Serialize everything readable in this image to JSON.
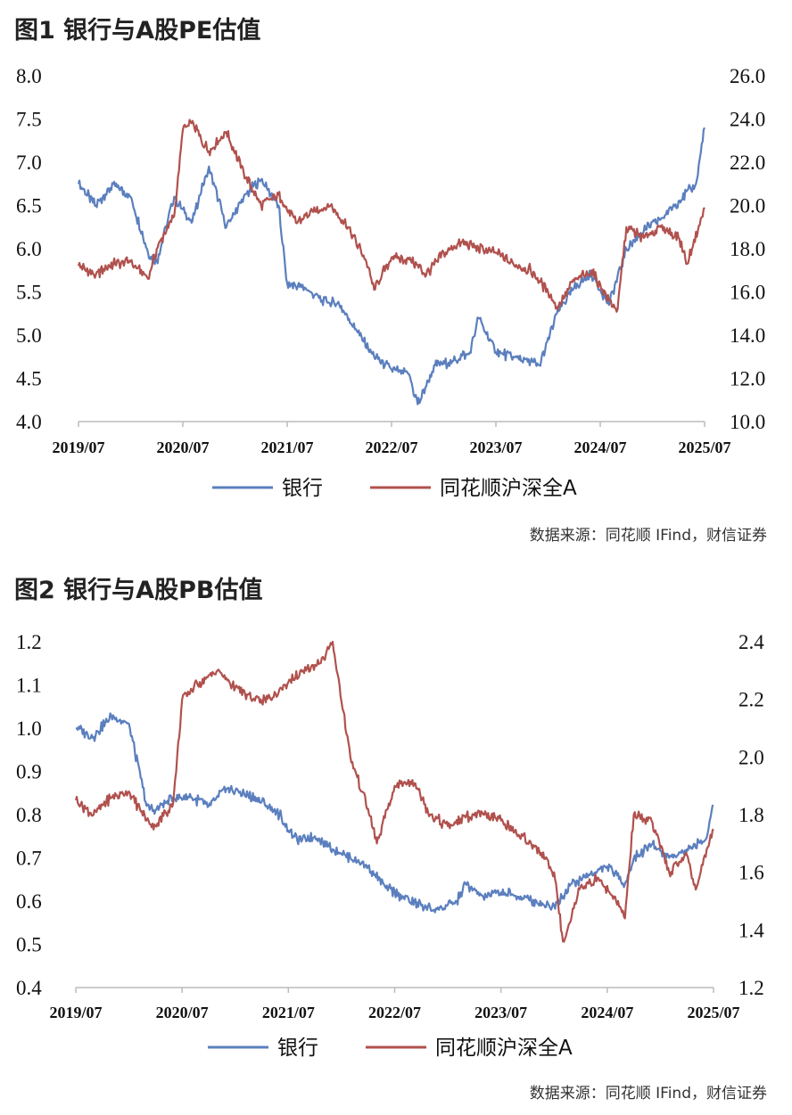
{
  "chart_data": [
    {
      "type": "line",
      "title": "图1  银行与A股PE估值",
      "source": "数据来源：同花顺 IFind，财信证券",
      "x_ticks": [
        "2019/07",
        "2020/07",
        "2021/07",
        "2022/07",
        "2023/07",
        "2024/07",
        "2025/07"
      ],
      "x_range": [
        "2019/07",
        "2025/07"
      ],
      "y_left": {
        "range": [
          4.0,
          8.0
        ],
        "ticks": [
          "4.0",
          "4.5",
          "5.0",
          "5.5",
          "6.0",
          "6.5",
          "7.0",
          "7.5",
          "8.0"
        ]
      },
      "y_right": {
        "range": [
          10.0,
          26.0
        ],
        "ticks": [
          "10.0",
          "12.0",
          "14.0",
          "16.0",
          "18.0",
          "20.0",
          "22.0",
          "24.0",
          "26.0"
        ]
      },
      "legend_position": "bottom",
      "grid": false,
      "series": [
        {
          "name": "银行",
          "color": "#5b7fbe",
          "axis": "left",
          "x": [
            "2019/07",
            "2019/09",
            "2019/11",
            "2020/01",
            "2020/03",
            "2020/04",
            "2020/06",
            "2020/08",
            "2020/10",
            "2020/12",
            "2021/02",
            "2021/04",
            "2021/06",
            "2021/07",
            "2021/09",
            "2021/11",
            "2022/01",
            "2022/03",
            "2022/05",
            "2022/07",
            "2022/09",
            "2022/10",
            "2022/12",
            "2023/02",
            "2023/04",
            "2023/05",
            "2023/07",
            "2023/09",
            "2023/11",
            "2023/12",
            "2024/02",
            "2024/04",
            "2024/06",
            "2024/08",
            "2024/10",
            "2024/12",
            "2025/02",
            "2025/04",
            "2025/06",
            "2025/07"
          ],
          "values": [
            6.75,
            6.5,
            6.75,
            6.6,
            5.95,
            5.85,
            6.6,
            6.3,
            6.95,
            6.25,
            6.6,
            6.8,
            6.5,
            5.6,
            5.55,
            5.4,
            5.35,
            5.05,
            4.75,
            4.6,
            4.55,
            4.2,
            4.65,
            4.7,
            4.8,
            5.2,
            4.8,
            4.75,
            4.7,
            4.65,
            5.25,
            5.55,
            5.7,
            5.35,
            6.0,
            6.2,
            6.35,
            6.55,
            6.75,
            7.4
          ]
        },
        {
          "name": "同花顺沪深全A",
          "color": "#b0514d",
          "axis": "right",
          "x": [
            "2019/07",
            "2019/09",
            "2019/11",
            "2020/01",
            "2020/03",
            "2020/04",
            "2020/06",
            "2020/07",
            "2020/08",
            "2020/10",
            "2020/12",
            "2021/02",
            "2021/04",
            "2021/06",
            "2021/08",
            "2021/10",
            "2021/12",
            "2022/02",
            "2022/04",
            "2022/05",
            "2022/07",
            "2022/09",
            "2022/11",
            "2023/01",
            "2023/03",
            "2023/05",
            "2023/07",
            "2023/09",
            "2023/11",
            "2024/01",
            "2024/02",
            "2024/04",
            "2024/06",
            "2024/08",
            "2024/09",
            "2024/10",
            "2024/12",
            "2025/02",
            "2025/04",
            "2025/05",
            "2025/07"
          ],
          "values": [
            17.2,
            16.8,
            17.3,
            17.4,
            16.6,
            18.0,
            19.5,
            23.5,
            23.8,
            22.5,
            23.4,
            21.5,
            20.0,
            20.5,
            19.2,
            19.7,
            20.0,
            19.0,
            17.5,
            16.1,
            17.6,
            17.5,
            16.8,
            17.8,
            18.3,
            18.0,
            17.8,
            17.3,
            17.0,
            16.0,
            15.3,
            16.5,
            17.0,
            15.6,
            15.2,
            19.0,
            18.5,
            19.0,
            18.5,
            17.3,
            19.9
          ]
        }
      ]
    },
    {
      "type": "line",
      "title": "图2  银行与A股PB估值",
      "source": "数据来源：同花顺 IFind，财信证券",
      "x_ticks": [
        "2019/07",
        "2020/07",
        "2021/07",
        "2022/07",
        "2023/07",
        "2024/07",
        "2025/07"
      ],
      "x_range": [
        "2019/07",
        "2025/07"
      ],
      "y_left": {
        "range": [
          0.4,
          1.2
        ],
        "ticks": [
          "0.4",
          "0.5",
          "0.6",
          "0.7",
          "0.8",
          "0.9",
          "1.0",
          "1.1",
          "1.2"
        ]
      },
      "y_right": {
        "range": [
          1.2,
          2.4
        ],
        "ticks": [
          "1.2",
          "1.4",
          "1.6",
          "1.8",
          "2.0",
          "2.2",
          "2.4"
        ]
      },
      "legend_position": "bottom",
      "grid": false,
      "series": [
        {
          "name": "银行",
          "color": "#5b7fbe",
          "axis": "left",
          "x": [
            "2019/07",
            "2019/09",
            "2019/11",
            "2020/01",
            "2020/03",
            "2020/04",
            "2020/06",
            "2020/08",
            "2020/10",
            "2020/12",
            "2021/02",
            "2021/04",
            "2021/06",
            "2021/08",
            "2021/10",
            "2021/12",
            "2022/02",
            "2022/04",
            "2022/06",
            "2022/08",
            "2022/10",
            "2022/12",
            "2023/02",
            "2023/03",
            "2023/05",
            "2023/07",
            "2023/09",
            "2023/11",
            "2024/01",
            "2024/03",
            "2024/05",
            "2024/07",
            "2024/09",
            "2024/10",
            "2024/12",
            "2025/02",
            "2025/04",
            "2025/06",
            "2025/07"
          ],
          "values": [
            1.0,
            0.98,
            1.03,
            1.01,
            0.82,
            0.81,
            0.84,
            0.84,
            0.82,
            0.86,
            0.85,
            0.83,
            0.8,
            0.74,
            0.75,
            0.72,
            0.7,
            0.68,
            0.63,
            0.61,
            0.59,
            0.58,
            0.6,
            0.64,
            0.61,
            0.62,
            0.61,
            0.6,
            0.59,
            0.64,
            0.66,
            0.68,
            0.64,
            0.7,
            0.73,
            0.7,
            0.72,
            0.74,
            0.82
          ]
        },
        {
          "name": "同花顺沪深全A",
          "color": "#b0514d",
          "axis": "right",
          "x": [
            "2019/07",
            "2019/09",
            "2019/11",
            "2020/01",
            "2020/03",
            "2020/04",
            "2020/06",
            "2020/07",
            "2020/09",
            "2020/11",
            "2021/01",
            "2021/03",
            "2021/05",
            "2021/07",
            "2021/09",
            "2021/11",
            "2021/12",
            "2022/02",
            "2022/04",
            "2022/05",
            "2022/07",
            "2022/09",
            "2022/11",
            "2023/01",
            "2023/03",
            "2023/05",
            "2023/07",
            "2023/09",
            "2023/11",
            "2024/01",
            "2024/02",
            "2024/04",
            "2024/06",
            "2024/08",
            "2024/09",
            "2024/10",
            "2024/12",
            "2025/02",
            "2025/04",
            "2025/05",
            "2025/07"
          ],
          "values": [
            1.85,
            1.8,
            1.86,
            1.88,
            1.78,
            1.76,
            1.84,
            2.2,
            2.26,
            2.3,
            2.24,
            2.2,
            2.2,
            2.26,
            2.3,
            2.34,
            2.4,
            2.0,
            1.82,
            1.7,
            1.9,
            1.92,
            1.8,
            1.76,
            1.79,
            1.8,
            1.78,
            1.73,
            1.69,
            1.6,
            1.36,
            1.55,
            1.58,
            1.5,
            1.44,
            1.8,
            1.78,
            1.6,
            1.66,
            1.54,
            1.75
          ]
        }
      ]
    }
  ]
}
